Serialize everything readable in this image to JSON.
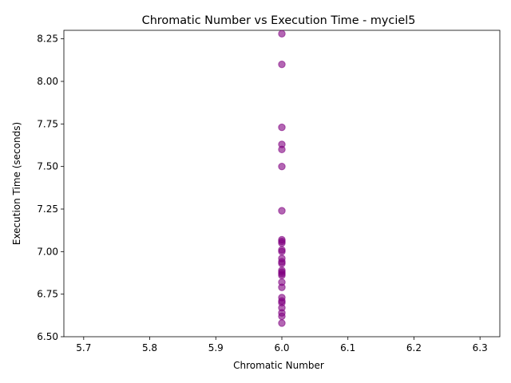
{
  "chart_data": {
    "type": "scatter",
    "title": "Chromatic Number vs Execution Time - myciel5",
    "xlabel": "Chromatic Number",
    "ylabel": "Execution Time (seconds)",
    "xlim": [
      5.67,
      6.33
    ],
    "ylim": [
      6.5,
      8.3
    ],
    "xticks": [
      "5.7",
      "5.8",
      "5.9",
      "6.0",
      "6.1",
      "6.2",
      "6.3"
    ],
    "yticks": [
      "6.50",
      "6.75",
      "7.00",
      "7.25",
      "7.50",
      "7.75",
      "8.00",
      "8.25"
    ],
    "grid": false,
    "point_color": "#800080",
    "point_alpha": 0.6,
    "points": [
      {
        "x": 6,
        "y": 8.28
      },
      {
        "x": 6,
        "y": 8.1
      },
      {
        "x": 6,
        "y": 7.73
      },
      {
        "x": 6,
        "y": 7.63
      },
      {
        "x": 6,
        "y": 7.6
      },
      {
        "x": 6,
        "y": 7.5
      },
      {
        "x": 6,
        "y": 7.24
      },
      {
        "x": 6,
        "y": 7.07
      },
      {
        "x": 6,
        "y": 7.06
      },
      {
        "x": 6,
        "y": 7.05
      },
      {
        "x": 6,
        "y": 7.01
      },
      {
        "x": 6,
        "y": 7.0
      },
      {
        "x": 6,
        "y": 6.96
      },
      {
        "x": 6,
        "y": 6.94
      },
      {
        "x": 6,
        "y": 6.93
      },
      {
        "x": 6,
        "y": 6.89
      },
      {
        "x": 6,
        "y": 6.88
      },
      {
        "x": 6,
        "y": 6.87
      },
      {
        "x": 6,
        "y": 6.86
      },
      {
        "x": 6,
        "y": 6.82
      },
      {
        "x": 6,
        "y": 6.79
      },
      {
        "x": 6,
        "y": 6.73
      },
      {
        "x": 6,
        "y": 6.71
      },
      {
        "x": 6,
        "y": 6.7
      },
      {
        "x": 6,
        "y": 6.67
      },
      {
        "x": 6,
        "y": 6.64
      },
      {
        "x": 6,
        "y": 6.62
      },
      {
        "x": 6,
        "y": 6.58
      }
    ]
  }
}
